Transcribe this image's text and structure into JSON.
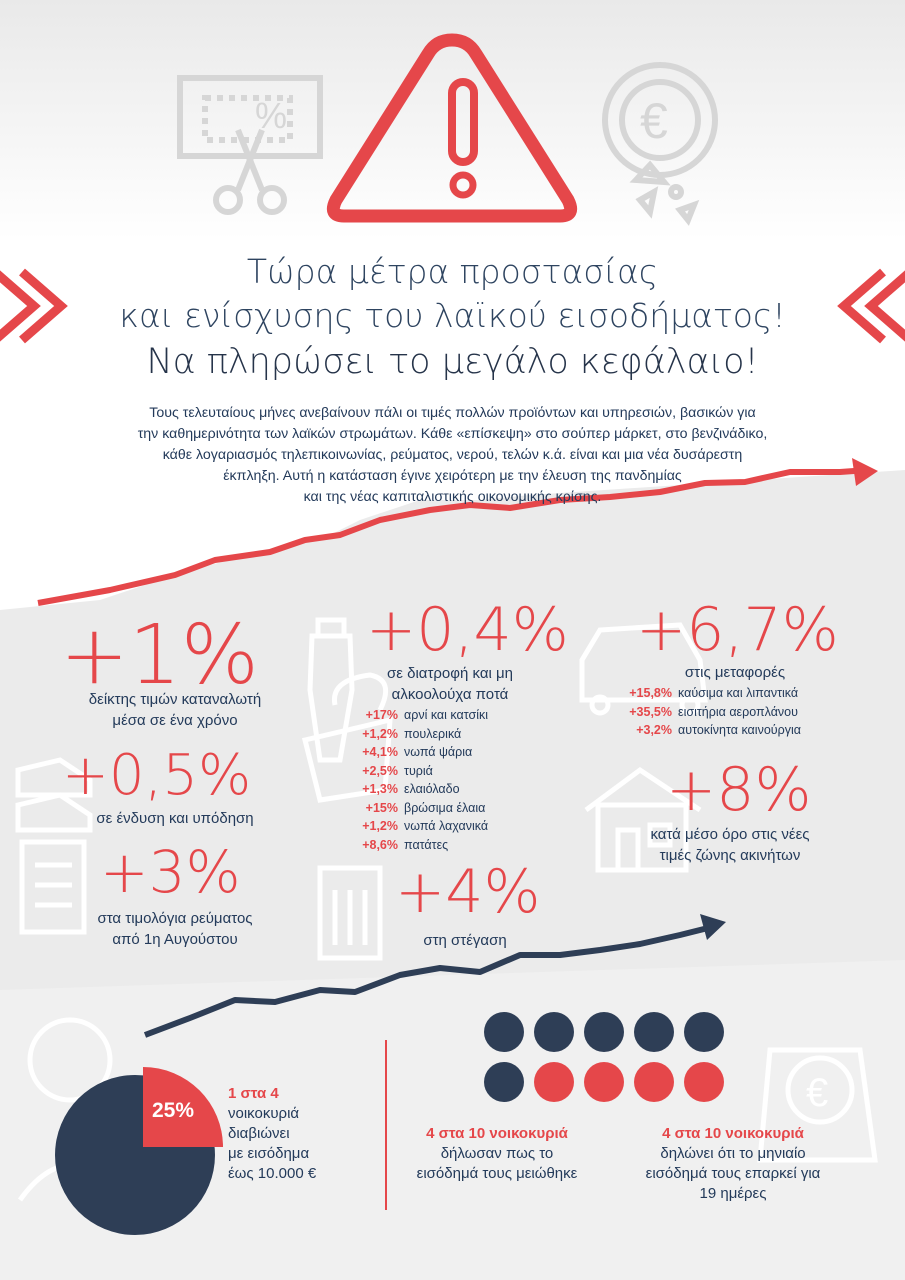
{
  "colors": {
    "red": "#e5474a",
    "navy": "#2e3e56",
    "grey_bg": "#ebebeb",
    "icon_grey": "#d8d8d8"
  },
  "icons": [
    "warning-triangle-icon",
    "scissors-coupon-icon",
    "euro-crisis-icon",
    "bottle-icon",
    "groceries-icon",
    "car-icon",
    "shoes-icon",
    "house-icon",
    "invoice-icon",
    "building-icon",
    "person-icon",
    "euro-coin-icon"
  ],
  "header": {
    "title_line1": "Τώρα μέτρα προστασίας",
    "title_line2": "και ενίσχυσης του λαϊκού εισοδήματος!",
    "title_line3": "Να πληρώσει το μεγάλο κεφάλαιο!",
    "intro_lines": [
      "Τους τελευταίους μήνες ανεβαίνουν πάλι οι τιμές πολλών προϊόντων και υπηρεσιών, βασικών για",
      "την καθημερινότητα των λαϊκών στρωμάτων. Κάθε «επίσκεψη» στο σούπερ μάρκετ, στο βενζινάδικο,",
      "κάθε λογαριασμός τηλεπικοινωνίας, ρεύματος, νερού, τελών κ.ά. είναι και μια νέα δυσάρεστη",
      "έκπληξη. Αυτή η κατάσταση έγινε χειρότερη με την έλευση της πανδημίας",
      "και της νέας καπιταλιστικής οικονομικής κρίσης."
    ]
  },
  "stats": {
    "cpi": {
      "value": "+1%",
      "caption1": "δείκτης τιμών καταναλωτή",
      "caption2": "μέσα σε ένα χρόνο"
    },
    "clothing": {
      "value": "+0,5%",
      "caption": "σε  ένδυση και υπόδηση"
    },
    "electricity": {
      "value": "+3%",
      "caption1": "στα τιμολόγια ρεύματος",
      "caption2": "από 1η Αυγούστου"
    },
    "food": {
      "value": "+0,4%",
      "caption1": "σε διατροφή και μη",
      "caption2": "αλκοολούχα ποτά",
      "items": [
        {
          "pct": "+17%",
          "label": "αρνί και κατσίκι"
        },
        {
          "pct": "+1,2%",
          "label": "πουλερικά"
        },
        {
          "pct": "+4,1%",
          "label": "νωπά ψάρια"
        },
        {
          "pct": "+2,5%",
          "label": "τυριά"
        },
        {
          "pct": "+1,3%",
          "label": "ελαιόλαδο"
        },
        {
          "pct": "+15%",
          "label": "βρώσιμα έλαια"
        },
        {
          "pct": "+1,2%",
          "label": "νωπά λαχανικά"
        },
        {
          "pct": "+8,6%",
          "label": "πατάτες"
        }
      ]
    },
    "housing": {
      "value": "+4%",
      "caption": "στη στέγαση"
    },
    "transport": {
      "value": "+6,7%",
      "caption": "στις μεταφορές",
      "items": [
        {
          "pct": "+15,8%",
          "label": "καύσιμα και λιπαντικά"
        },
        {
          "pct": "+35,5%",
          "label": "εισιτήρια αεροπλάνου"
        },
        {
          "pct": "+3,2%",
          "label": "αυτοκίνητα καινούργια"
        }
      ]
    },
    "real_estate": {
      "value": "+8%",
      "caption1": "κατά μέσο όρο στις νέες",
      "caption2": "τιμές ζώνης ακινήτων"
    }
  },
  "bottom": {
    "pie": {
      "percent_label": "25%",
      "share": 0.25
    },
    "pie_text": {
      "headline": "1 στα 4",
      "line1": "νοικοκυριά",
      "line2": "διαβιώνει",
      "line3": "με εισόδημα",
      "line4": "έως 10.000 €"
    },
    "dots": {
      "total": 10,
      "highlighted": 4
    },
    "stat_reduced": {
      "headline": "4 στα 10 νοικοκυριά",
      "line1": "δήλωσαν πως το",
      "line2": "εισόδημά τους μειώθηκε"
    },
    "stat_days": {
      "headline": "4 στα 10 νοικοκυριά",
      "line1": "δηλώνει ότι το μηνιαίο",
      "line2": "εισόδημά τους επαρκεί για",
      "line3": "19 ημέρες"
    }
  }
}
